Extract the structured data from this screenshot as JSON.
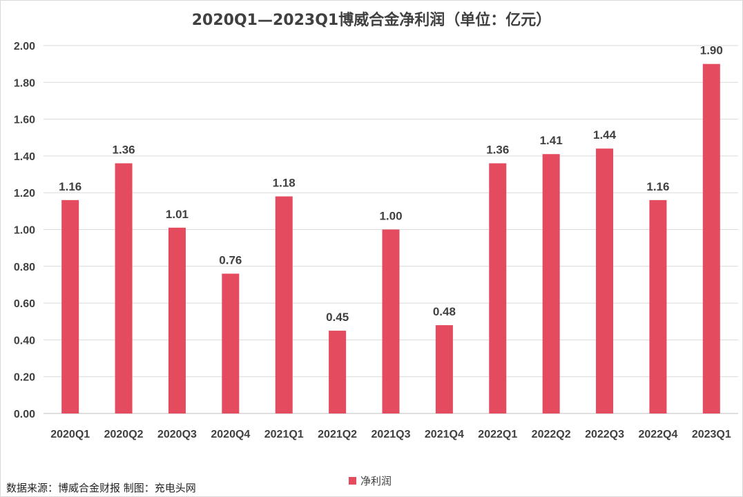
{
  "chart_data": {
    "type": "bar",
    "title": "2020Q1—2023Q1博威合金净利润（单位：亿元）",
    "categories": [
      "2020Q1",
      "2020Q2",
      "2020Q3",
      "2020Q4",
      "2021Q1",
      "2021Q2",
      "2021Q3",
      "2021Q4",
      "2022Q1",
      "2022Q2",
      "2022Q3",
      "2022Q4",
      "2023Q1"
    ],
    "series": [
      {
        "name": "净利润",
        "values": [
          1.16,
          1.36,
          1.01,
          0.76,
          1.18,
          0.45,
          1.0,
          0.48,
          1.36,
          1.41,
          1.44,
          1.16,
          1.9
        ],
        "labels": [
          "1.16",
          "1.36",
          "1.01",
          "0.76",
          "1.18",
          "0.45",
          "1.00",
          "0.48",
          "1.36",
          "1.41",
          "1.44",
          "1.16",
          "1.90"
        ],
        "color": "#E54B5E"
      }
    ],
    "y_ticks": [
      "0.00",
      "0.20",
      "0.40",
      "0.60",
      "0.80",
      "1.00",
      "1.20",
      "1.40",
      "1.60",
      "1.80",
      "2.00"
    ],
    "ylim": [
      0,
      2.0
    ],
    "grid": true,
    "legend_position": "bottom"
  },
  "source_note": "数据来源：博威合金财报  制图：充电头网",
  "colors": {
    "bar": "#E54B5E",
    "grid": "#d9d9d9",
    "text": "#404040"
  }
}
